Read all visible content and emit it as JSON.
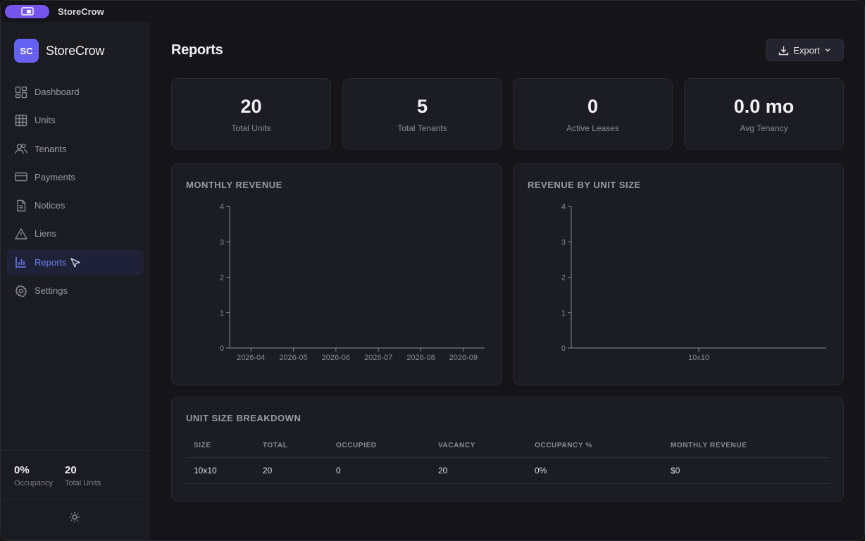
{
  "titlebar": {
    "app_name": "StoreCrow"
  },
  "brand": {
    "logo_text": "SC",
    "name": "StoreCrow"
  },
  "sidebar": {
    "items": [
      {
        "label": "Dashboard",
        "icon": "dashboard-icon"
      },
      {
        "label": "Units",
        "icon": "grid-icon"
      },
      {
        "label": "Tenants",
        "icon": "users-icon"
      },
      {
        "label": "Payments",
        "icon": "credit-card-icon"
      },
      {
        "label": "Notices",
        "icon": "document-icon"
      },
      {
        "label": "Liens",
        "icon": "warning-icon"
      },
      {
        "label": "Reports",
        "icon": "bar-chart-icon",
        "active": true
      },
      {
        "label": "Settings",
        "icon": "gear-icon"
      }
    ],
    "stats": [
      {
        "value": "0%",
        "label": "Occupancy"
      },
      {
        "value": "20",
        "label": "Total Units"
      }
    ],
    "theme_toggle_icon": "sun-icon"
  },
  "header": {
    "title": "Reports",
    "export_label": "Export"
  },
  "kpis": [
    {
      "value": "20",
      "label": "Total Units"
    },
    {
      "value": "5",
      "label": "Total Tenants"
    },
    {
      "value": "0",
      "label": "Active Leases"
    },
    {
      "value": "0.0 mo",
      "label": "Avg Tenancy"
    }
  ],
  "colors": {
    "accent": "#6b7cf0",
    "logo": "#6461f0",
    "titlebar_pill": "#7655ee"
  },
  "chart_data": [
    {
      "type": "bar",
      "title": "MONTHLY REVENUE",
      "categories": [
        "2026-04",
        "2026-05",
        "2026-06",
        "2026-07",
        "2026-08",
        "2026-09"
      ],
      "values": [
        0,
        0,
        0,
        0,
        0,
        0
      ],
      "ylim": [
        0,
        4
      ],
      "yticks": [
        0,
        1,
        2,
        3,
        4
      ],
      "grid": false
    },
    {
      "type": "bar",
      "title": "REVENUE BY UNIT SIZE",
      "categories": [
        "10x10"
      ],
      "values": [
        0
      ],
      "ylim": [
        0,
        4
      ],
      "yticks": [
        0,
        1,
        2,
        3,
        4
      ],
      "grid": false
    }
  ],
  "breakdown": {
    "title": "UNIT SIZE BREAKDOWN",
    "columns": [
      "SIZE",
      "TOTAL",
      "OCCUPIED",
      "VACANCY",
      "OCCUPANCY %",
      "MONTHLY REVENUE"
    ],
    "rows": [
      [
        "10x10",
        "20",
        "0",
        "20",
        "0%",
        "$0"
      ]
    ]
  }
}
